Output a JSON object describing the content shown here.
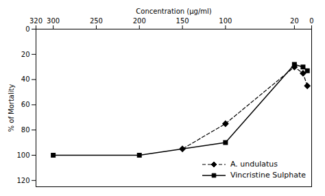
{
  "chart_data": {
    "type": "line",
    "xlabel": "Concentration (µg/ml)",
    "ylabel": "% of Mortality",
    "xlim": [
      320,
      0
    ],
    "ylim": [
      125,
      0
    ],
    "xticks": [
      0,
      20,
      100,
      150,
      200,
      250,
      300,
      320
    ],
    "yticks": [
      0,
      20,
      40,
      60,
      80,
      100,
      120
    ],
    "grid": false,
    "legend": "lower right",
    "series": [
      {
        "name": "A. undulatus",
        "color": "#000000",
        "marker": "diamond",
        "line_style": "dashed",
        "x": [
          5,
          10,
          20,
          100,
          150
        ],
        "values": [
          45,
          35,
          30,
          75,
          95
        ]
      },
      {
        "name": "Vincristine Sulphate",
        "color": "#000000",
        "marker": "square",
        "line_style": "solid",
        "x": [
          5,
          10,
          20,
          100,
          200,
          300
        ],
        "values": [
          33,
          30,
          28,
          90,
          100,
          100
        ]
      }
    ]
  }
}
